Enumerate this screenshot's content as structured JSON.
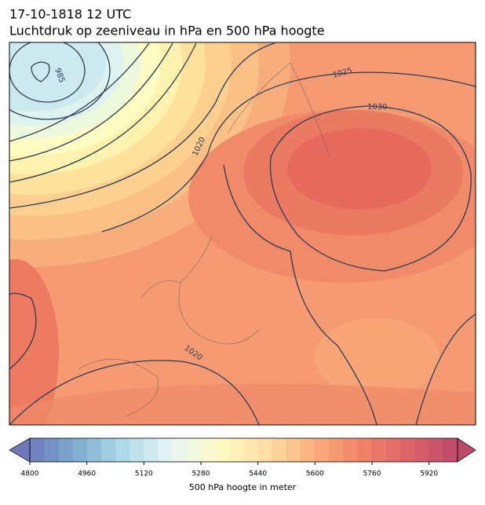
{
  "header": {
    "title": "17-10-1818 12 UTC",
    "subtitle": "Luchtdruk op zeeniveau in hPa en 500 hPa hoogte"
  },
  "map": {
    "contour_labels": [
      "985",
      "1020",
      "1025",
      "1030",
      "1020"
    ]
  },
  "colorbar": {
    "label": "500 hPa hoogte in meter",
    "lim": [
      4800,
      6000
    ],
    "step": 40,
    "ticks": [
      4800,
      4960,
      5120,
      5280,
      5440,
      5600,
      5760,
      5920
    ],
    "colors": [
      "#5e6bb4",
      "#72a5cc",
      "#a9d6e6",
      "#e6f5f2",
      "#fffcc0",
      "#fdd89a",
      "#f9a66e",
      "#ee7559",
      "#d8525a",
      "#b6365a"
    ]
  }
}
